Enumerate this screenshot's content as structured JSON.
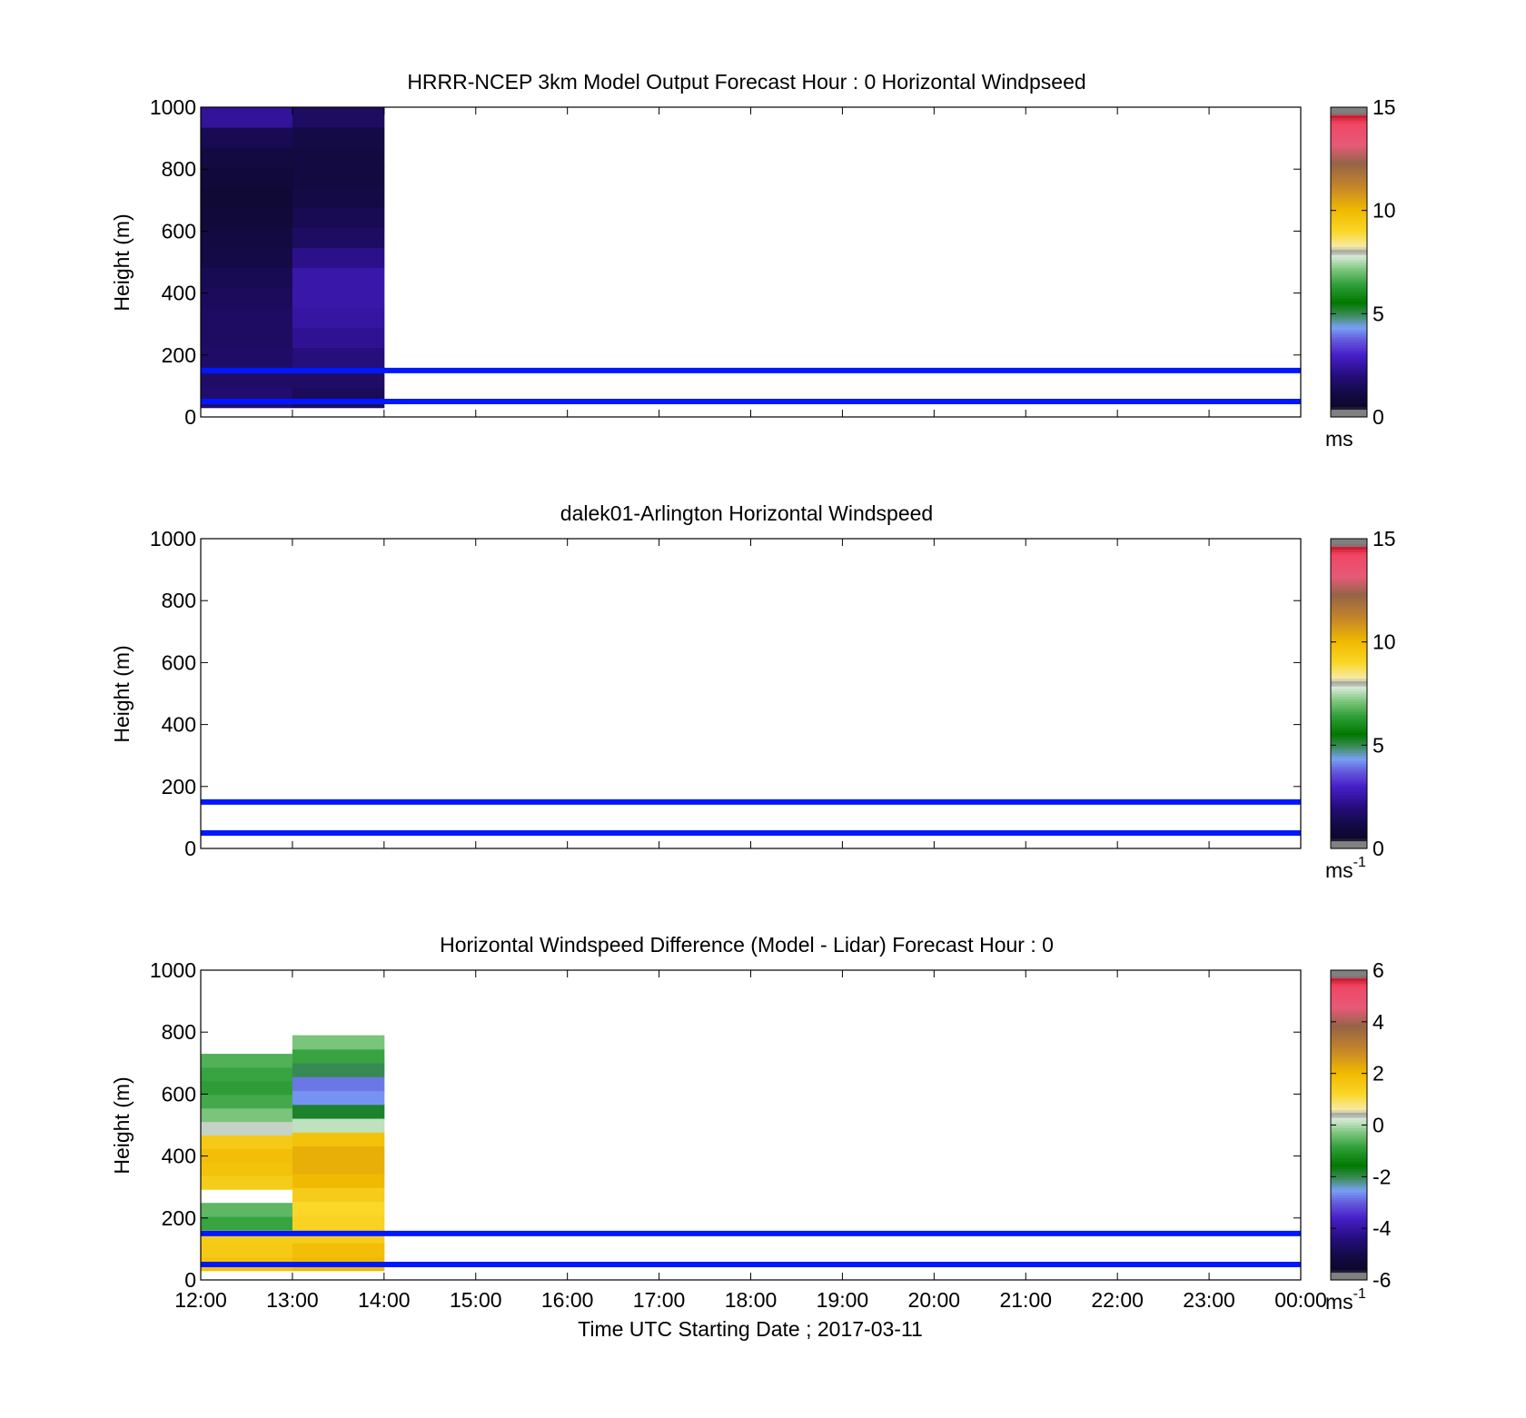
{
  "chart_data": [
    {
      "type": "heatmap",
      "title": "HRRR-NCEP 3km Model Output   Forecast Hour : 0 Horizontal Windpseed",
      "ylabel": "Height (m)",
      "ylim": [
        0,
        1000
      ],
      "yticks": [
        "0",
        "200",
        "400",
        "600",
        "800",
        "1000"
      ],
      "x_range": [
        "12:00",
        "00:00"
      ],
      "colorbar": {
        "min": 0,
        "max": 15,
        "ticks": [
          "0",
          "5",
          "10",
          "15"
        ],
        "unit": "ms",
        "unit_exp": ""
      },
      "reference_lines_m": [
        150,
        50
      ],
      "columns": [
        {
          "start": "12:00",
          "end": "13:00",
          "top_m": 1000,
          "bottom_m": 30,
          "profile_bottom_to_top": [
            1.8,
            1.7,
            1.7,
            1.6,
            1.6,
            1.5,
            1.4,
            1.2,
            1.1,
            0.9,
            0.8,
            0.9,
            1.1,
            1.4,
            2.4
          ]
        },
        {
          "start": "13:00",
          "end": "14:00",
          "top_m": 1000,
          "bottom_m": 30,
          "profile_bottom_to_top": [
            1.5,
            1.7,
            2.0,
            2.3,
            2.5,
            2.6,
            2.6,
            2.2,
            1.6,
            1.4,
            1.2,
            1.1,
            1.1,
            1.2,
            1.6
          ]
        }
      ]
    },
    {
      "type": "heatmap",
      "title": "dalek01-Arlington  Horizontal Windspeed",
      "ylabel": "Height (m)",
      "ylim": [
        0,
        1000
      ],
      "yticks": [
        "0",
        "200",
        "400",
        "600",
        "800",
        "1000"
      ],
      "x_range": [
        "12:00",
        "00:00"
      ],
      "colorbar": {
        "min": 0,
        "max": 15,
        "ticks": [
          "0",
          "5",
          "10",
          "15"
        ],
        "unit": "ms",
        "unit_exp": "-1"
      },
      "reference_lines_m": [
        150,
        50
      ]
    },
    {
      "type": "heatmap",
      "title": "Horizontal Windspeed Difference (Model - Lidar) Forecast Hour : 0",
      "ylabel": "Height (m)",
      "xlabel": "Time UTC  Starting Date ; 2017-03-11",
      "ylim": [
        0,
        1000
      ],
      "yticks": [
        "0",
        "200",
        "400",
        "600",
        "800",
        "1000"
      ],
      "x_range": [
        "12:00",
        "00:00"
      ],
      "xticks": [
        "12:00",
        "13:00",
        "14:00",
        "15:00",
        "16:00",
        "17:00",
        "18:00",
        "19:00",
        "20:00",
        "21:00",
        "22:00",
        "23:00",
        "00:00"
      ],
      "colorbar": {
        "min": -6,
        "max": 6,
        "ticks": [
          "-6",
          "-4",
          "-2",
          "0",
          "2",
          "4",
          "6"
        ],
        "unit": "ms",
        "unit_exp": "-1"
      },
      "reference_lines_m": [
        150,
        50
      ],
      "columns": [
        {
          "start": "12:00",
          "end": "13:00",
          "top_m": 730,
          "bottom_m": 30,
          "profile_bottom_to_top": [
            1.8,
            1.6,
            1.5,
            -0.8,
            -0.5,
            null,
            1.5,
            1.8,
            1.9,
            1.6,
            0.3,
            -0.3,
            -0.7,
            -0.9,
            -0.8,
            -0.6
          ]
        },
        {
          "start": "13:00",
          "end": "14:00",
          "top_m": 790,
          "bottom_m": 30,
          "profile_bottom_to_top": [
            2.0,
            1.9,
            1.5,
            1.3,
            1.2,
            1.5,
            2.0,
            2.2,
            2.2,
            1.8,
            0.1,
            -1.8,
            -2.6,
            -2.8,
            -2.0,
            -0.8,
            -0.3
          ]
        }
      ]
    }
  ]
}
